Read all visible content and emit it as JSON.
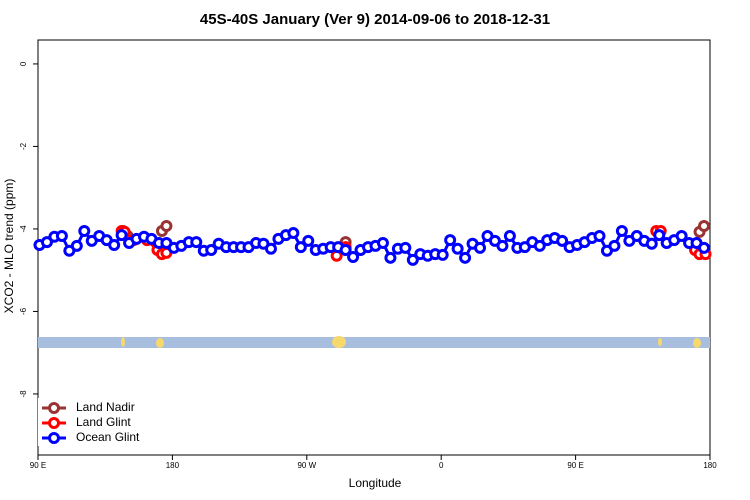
{
  "chart_data": {
    "type": "line",
    "title": "45S-40S January (Ver 9)   2014-09-06 to 2018-12-31",
    "x_label": "Longitude",
    "y_label": "XCO2 - MLO trend (ppm)",
    "xlim": [
      90,
      540
    ],
    "ylim": [
      -9.48,
      0.58
    ],
    "xticks": [
      {
        "value": 90,
        "label": "90 E"
      },
      180,
      {
        "value": 270,
        "label": "90 W"
      },
      {
        "value": 360,
        "label": "0"
      },
      {
        "value": 450,
        "label": "90 E"
      },
      {
        "value": 540,
        "label": "180"
      }
    ],
    "yticks": [
      0,
      -2,
      -4,
      -6,
      -8
    ],
    "legend": "bottom-left",
    "series": [
      {
        "name": "Land Nadir",
        "color": "#993333",
        "x": [
          147,
          150,
          173,
          176,
          296,
          533,
          536
        ],
        "values": [
          -4.05,
          -4.17,
          -4.05,
          -3.93,
          -4.32,
          -4.07,
          -3.93
        ]
      },
      {
        "name": "Land Glint",
        "color": "#ff0000",
        "x": [
          146,
          148,
          154,
          163,
          170,
          173,
          176,
          290,
          294,
          296,
          504,
          507,
          530,
          533,
          537
        ],
        "values": [
          -4.05,
          -4.07,
          -4.27,
          -4.27,
          -4.51,
          -4.61,
          -4.58,
          -4.65,
          -4.48,
          -4.44,
          -4.05,
          -4.05,
          -4.51,
          -4.61,
          -4.61
        ]
      },
      {
        "name": "Ocean Glint",
        "color": "#0000ff",
        "x": [
          91,
          96,
          101,
          106,
          111,
          116,
          121,
          126,
          131,
          136,
          141,
          146,
          151,
          156,
          161,
          166,
          171,
          176,
          181,
          186,
          191,
          196,
          201,
          206,
          211,
          216,
          221,
          226,
          231,
          236,
          241,
          246,
          251,
          256,
          261,
          266,
          271,
          276,
          281,
          286,
          291,
          296,
          301,
          306,
          311,
          316,
          321,
          326,
          331,
          336,
          341,
          346,
          351,
          356,
          361,
          366,
          371,
          376,
          381,
          386,
          391,
          396,
          401,
          406,
          411,
          416,
          421,
          426,
          431,
          436,
          441,
          446,
          451,
          456,
          461,
          466,
          471,
          476,
          481,
          486,
          491,
          496,
          501,
          506,
          511,
          516,
          521,
          526,
          531,
          536
        ],
        "values": [
          -4.39,
          -4.32,
          -4.19,
          -4.17,
          -4.53,
          -4.41,
          -4.05,
          -4.29,
          -4.17,
          -4.27,
          -4.39,
          -4.15,
          -4.34,
          -4.24,
          -4.19,
          -4.24,
          -4.34,
          -4.34,
          -4.46,
          -4.41,
          -4.32,
          -4.32,
          -4.53,
          -4.51,
          -4.36,
          -4.44,
          -4.44,
          -4.44,
          -4.44,
          -4.34,
          -4.36,
          -4.48,
          -4.24,
          -4.15,
          -4.1,
          -4.44,
          -4.29,
          -4.51,
          -4.48,
          -4.44,
          -4.44,
          -4.51,
          -4.68,
          -4.51,
          -4.44,
          -4.41,
          -4.34,
          -4.7,
          -4.48,
          -4.46,
          -4.75,
          -4.61,
          -4.65,
          -4.61,
          -4.63,
          -4.27,
          -4.48,
          -4.7,
          -4.36,
          -4.46,
          -4.17,
          -4.29,
          -4.41,
          -4.17,
          -4.46,
          -4.44,
          -4.32,
          -4.41,
          -4.27,
          -4.22,
          -4.29,
          -4.44,
          -4.39,
          -4.32,
          -4.22,
          -4.17,
          -4.53,
          -4.41,
          -4.05,
          -4.29,
          -4.17,
          -4.29,
          -4.36,
          -4.15,
          -4.34,
          -4.27,
          -4.17,
          -4.34,
          -4.34,
          -4.46
        ]
      }
    ]
  }
}
